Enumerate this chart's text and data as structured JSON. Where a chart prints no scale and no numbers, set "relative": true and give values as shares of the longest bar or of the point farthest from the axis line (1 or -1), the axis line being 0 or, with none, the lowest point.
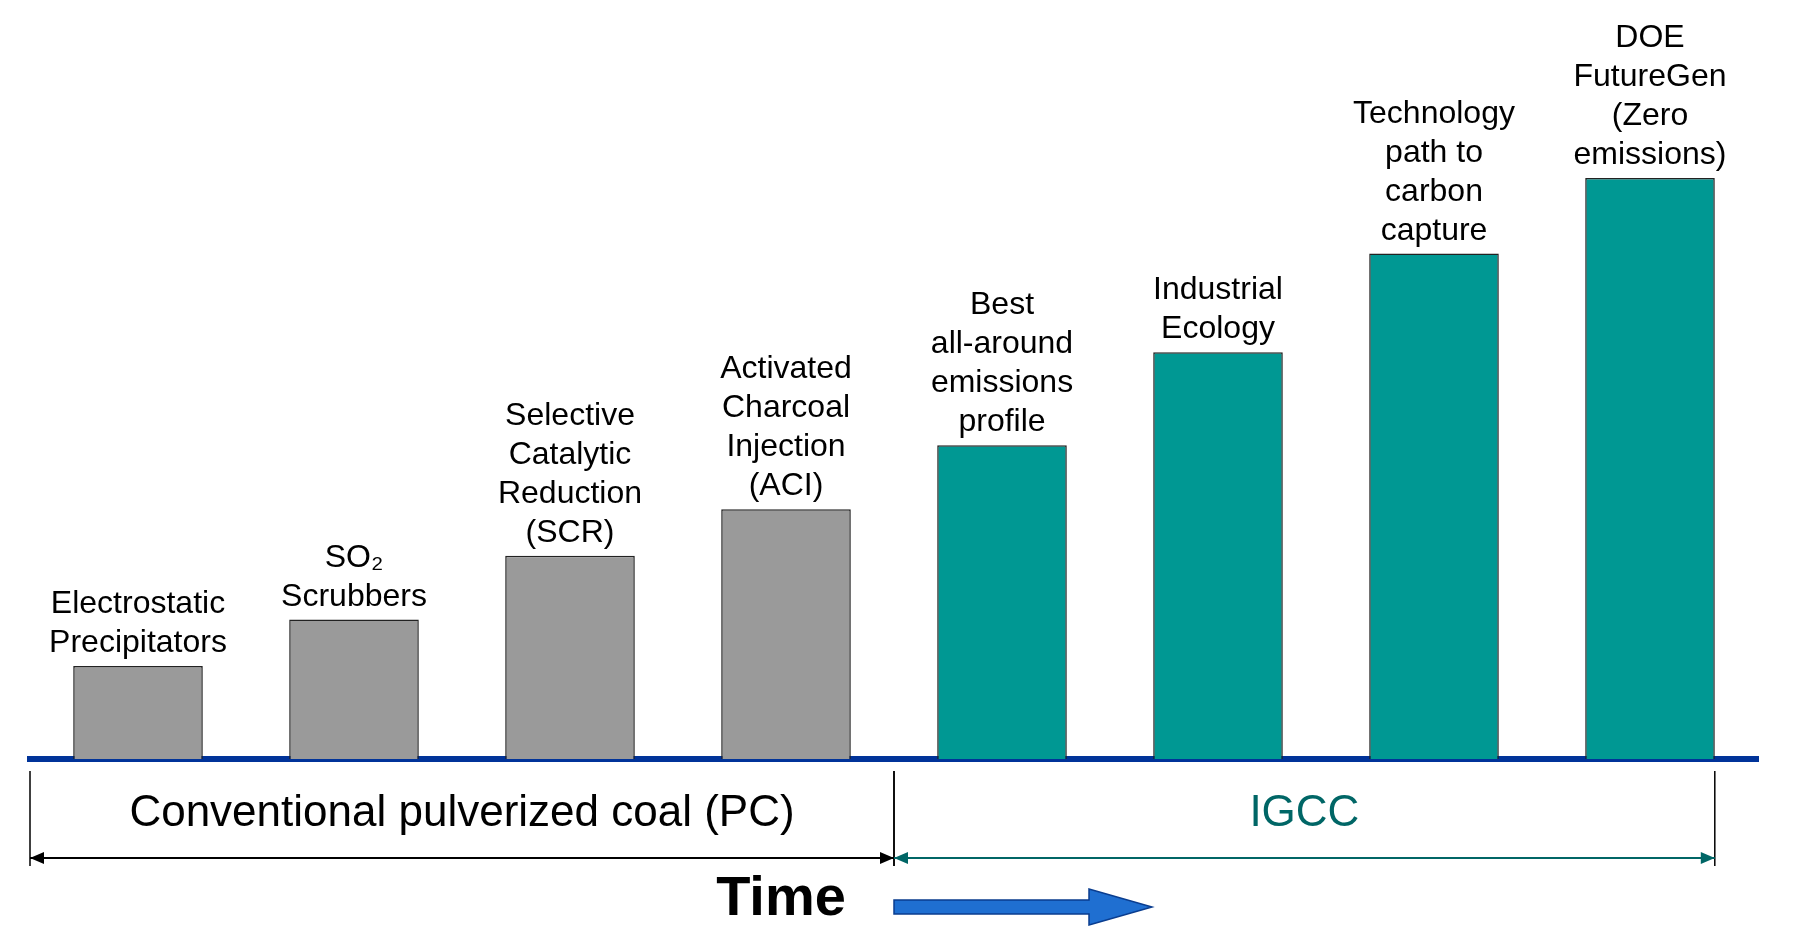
{
  "chart_data": {
    "type": "bar",
    "relative": true,
    "categories": [
      "Electrostatic\nPrecipitators",
      "SO₂\nScrubbers",
      "Selective\nCatalytic\nReduction\n(SCR)",
      "Activated\nCharcoal\nInjection\n(ACI)",
      "Best\nall-around\nemissions\nprofile",
      "Industrial\nEcology",
      "Technology\npath to\ncarbon\ncapture",
      "DOE\nFutureGen\n(Zero\nemissions)"
    ],
    "values": [
      0.16,
      0.24,
      0.35,
      0.43,
      0.54,
      0.7,
      0.87,
      1
    ],
    "colors": [
      "#9a9a9a",
      "#9a9a9a",
      "#9a9a9a",
      "#9a9a9a",
      "#009893",
      "#009893",
      "#009893",
      "#009893"
    ],
    "annotations": [
      "Conventional pulverized coal (PC)",
      "IGCC",
      "Time"
    ],
    "grid": false,
    "legend": false
  }
}
